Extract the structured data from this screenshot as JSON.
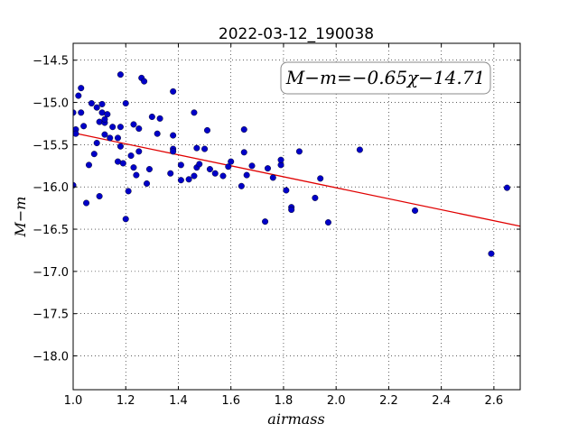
{
  "chart_data": {
    "type": "scatter",
    "title": "2022-03-12_190038",
    "xlabel": "airmass",
    "ylabel": "M−m",
    "xlim": [
      1.0,
      2.7
    ],
    "ylim": [
      -18.4,
      -14.3
    ],
    "y_inverted": true,
    "grid": true,
    "x_ticks": [
      1.0,
      1.2,
      1.4,
      1.6,
      1.8,
      2.0,
      2.2,
      2.4,
      2.6
    ],
    "x_tick_labels": [
      "1.0",
      "1.2",
      "1.4",
      "1.6",
      "1.8",
      "2.0",
      "2.2",
      "2.4",
      "2.6"
    ],
    "y_ticks": [
      -14.5,
      -15.0,
      -15.5,
      -16.0,
      -16.5,
      -17.0,
      -17.5,
      -18.0
    ],
    "y_tick_labels": [
      "−14.5",
      "−15.0",
      "−15.5",
      "−16.0",
      "−16.5",
      "−17.0",
      "−17.5",
      "−18.0"
    ],
    "annotation": "M−m=−0.65χ−14.71",
    "annotation_position": "top-right",
    "fit": {
      "slope": -0.65,
      "intercept": -14.71,
      "color": "#e00000"
    },
    "point_color": "#0000c8",
    "points": [
      [
        1.0,
        -15.12
      ],
      [
        1.01,
        -15.32
      ],
      [
        1.01,
        -15.37
      ],
      [
        1.02,
        -14.92
      ],
      [
        1.03,
        -14.83
      ],
      [
        1.03,
        -15.12
      ],
      [
        1.04,
        -15.28
      ],
      [
        1.0,
        -15.98
      ],
      [
        1.05,
        -16.19
      ],
      [
        1.06,
        -15.74
      ],
      [
        1.07,
        -15.01
      ],
      [
        1.08,
        -15.61
      ],
      [
        1.09,
        -15.06
      ],
      [
        1.09,
        -15.48
      ],
      [
        1.1,
        -15.23
      ],
      [
        1.1,
        -16.11
      ],
      [
        1.11,
        -15.12
      ],
      [
        1.11,
        -15.02
      ],
      [
        1.12,
        -15.24
      ],
      [
        1.12,
        -15.2
      ],
      [
        1.12,
        -15.38
      ],
      [
        1.13,
        -15.14
      ],
      [
        1.14,
        -15.42
      ],
      [
        1.15,
        -15.29
      ],
      [
        1.17,
        -15.42
      ],
      [
        1.17,
        -15.7
      ],
      [
        1.18,
        -14.67
      ],
      [
        1.18,
        -15.29
      ],
      [
        1.18,
        -15.52
      ],
      [
        1.19,
        -15.72
      ],
      [
        1.2,
        -16.38
      ],
      [
        1.2,
        -15.01
      ],
      [
        1.21,
        -16.05
      ],
      [
        1.22,
        -15.63
      ],
      [
        1.23,
        -15.26
      ],
      [
        1.23,
        -15.77
      ],
      [
        1.24,
        -15.86
      ],
      [
        1.25,
        -15.31
      ],
      [
        1.25,
        -15.58
      ],
      [
        1.26,
        -14.71
      ],
      [
        1.27,
        -14.75
      ],
      [
        1.28,
        -15.96
      ],
      [
        1.29,
        -15.79
      ],
      [
        1.3,
        -15.17
      ],
      [
        1.32,
        -15.37
      ],
      [
        1.33,
        -15.19
      ],
      [
        1.37,
        -15.84
      ],
      [
        1.38,
        -15.39
      ],
      [
        1.38,
        -15.55
      ],
      [
        1.38,
        -15.58
      ],
      [
        1.38,
        -14.87
      ],
      [
        1.41,
        -15.92
      ],
      [
        1.41,
        -15.74
      ],
      [
        1.44,
        -15.91
      ],
      [
        1.46,
        -15.87
      ],
      [
        1.46,
        -15.12
      ],
      [
        1.47,
        -15.77
      ],
      [
        1.47,
        -15.54
      ],
      [
        1.48,
        -15.73
      ],
      [
        1.5,
        -15.55
      ],
      [
        1.51,
        -15.33
      ],
      [
        1.52,
        -15.79
      ],
      [
        1.54,
        -15.84
      ],
      [
        1.57,
        -15.87
      ],
      [
        1.59,
        -15.76
      ],
      [
        1.6,
        -15.7
      ],
      [
        1.64,
        -15.99
      ],
      [
        1.65,
        -15.32
      ],
      [
        1.65,
        -15.59
      ],
      [
        1.66,
        -15.86
      ],
      [
        1.68,
        -15.75
      ],
      [
        1.73,
        -16.41
      ],
      [
        1.74,
        -15.78
      ],
      [
        1.76,
        -15.89
      ],
      [
        1.79,
        -15.74
      ],
      [
        1.79,
        -15.68
      ],
      [
        1.81,
        -16.04
      ],
      [
        1.83,
        -16.24
      ],
      [
        1.83,
        -16.27
      ],
      [
        1.86,
        -15.58
      ],
      [
        1.92,
        -16.13
      ],
      [
        1.94,
        -15.9
      ],
      [
        1.97,
        -16.42
      ],
      [
        2.09,
        -15.56
      ],
      [
        2.3,
        -16.28
      ],
      [
        2.59,
        -16.79
      ],
      [
        2.65,
        -16.01
      ]
    ]
  }
}
